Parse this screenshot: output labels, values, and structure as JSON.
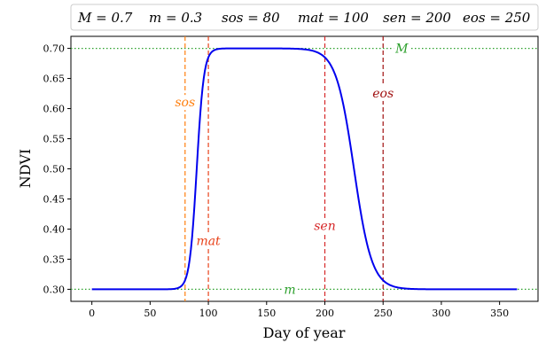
{
  "chart_data": {
    "type": "line",
    "xlabel": "Day of year",
    "ylabel": "NDVI",
    "xlim": [
      -18,
      383
    ],
    "ylim": [
      0.28,
      0.72
    ],
    "x_ticks": [
      0,
      50,
      100,
      150,
      200,
      250,
      300,
      350
    ],
    "y_ticks": [
      0.3,
      0.35,
      0.4,
      0.45,
      0.5,
      0.55,
      0.6,
      0.65,
      0.7
    ],
    "grid": false,
    "legend_placement": "top",
    "params_legend": [
      {
        "text": "M = 0.7"
      },
      {
        "text": "m = 0.3"
      },
      {
        "text": "sos = 80"
      },
      {
        "text": "mat = 100"
      },
      {
        "text": "sen = 200"
      },
      {
        "text": "eos = 250"
      }
    ],
    "model": {
      "M": 0.7,
      "m": 0.3,
      "sos": 80,
      "mat": 100,
      "sen": 200,
      "eos": 250
    },
    "series": [
      {
        "color": "#0000ee",
        "x_range": [
          0,
          365
        ],
        "x_step": 1
      }
    ],
    "hlines": [
      {
        "y": 0.7,
        "label": "M",
        "color": "#2ca02c",
        "label_x": 266
      },
      {
        "y": 0.3,
        "label": "m",
        "color": "#2ca02c",
        "label_x": 170
      }
    ],
    "vlines": [
      {
        "x": 80,
        "label": "sos",
        "color": "#ff7f0e",
        "label_y": 0.605
      },
      {
        "x": 100,
        "label": "mat",
        "color": "#e8421a",
        "label_y": 0.375
      },
      {
        "x": 200,
        "label": "sen",
        "color": "#d62728",
        "label_y": 0.4
      },
      {
        "x": 250,
        "label": "eos",
        "color": "#a01010",
        "label_y": 0.62
      }
    ]
  }
}
